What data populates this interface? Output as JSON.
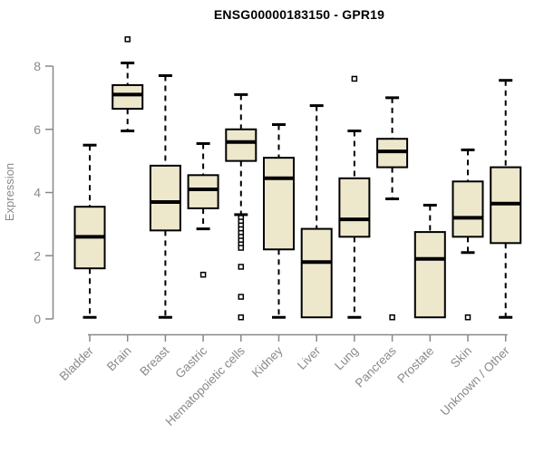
{
  "header": {
    "title": "ENSG00000183150 - GPR19"
  },
  "chart_data": {
    "type": "boxplot",
    "title": "ENSG00000183150 - GPR19",
    "xlabel": "",
    "ylabel": "Expression",
    "ylim": [
      0,
      8
    ],
    "yticks": [
      0,
      2,
      4,
      6,
      8
    ],
    "grid": false,
    "legend": "none",
    "box_fill": "#EDE7CC",
    "box_stroke": "#000000",
    "median_color": "#000000",
    "axis_color": "#888888",
    "label_color": "#8A8A8A",
    "categories": [
      "Bladder",
      "Brain",
      "Breast",
      "Gastric",
      "Hematopoietic cells",
      "Kidney",
      "Liver",
      "Lung",
      "Pancreas",
      "Prostate",
      "Skin",
      "Unknown / Other"
    ],
    "series": [
      {
        "category": "Bladder",
        "whisker_low": 0.05,
        "q1": 1.6,
        "median": 2.6,
        "q3": 3.55,
        "whisker_high": 5.5,
        "outliers": []
      },
      {
        "category": "Brain",
        "whisker_low": 5.95,
        "q1": 6.65,
        "median": 7.1,
        "q3": 7.4,
        "whisker_high": 8.1,
        "outliers": [
          8.85
        ]
      },
      {
        "category": "Breast",
        "whisker_low": 0.05,
        "q1": 2.8,
        "median": 3.7,
        "q3": 4.85,
        "whisker_high": 7.7,
        "outliers": []
      },
      {
        "category": "Gastric",
        "whisker_low": 2.85,
        "q1": 3.5,
        "median": 4.1,
        "q3": 4.55,
        "whisker_high": 5.55,
        "outliers": [
          1.4
        ]
      },
      {
        "category": "Hematopoietic cells",
        "whisker_low": 3.3,
        "q1": 5.0,
        "median": 5.6,
        "q3": 6.0,
        "whisker_high": 7.1,
        "outliers": [
          3.2,
          3.08,
          2.96,
          2.84,
          2.72,
          2.6,
          2.48,
          2.36,
          2.25,
          1.65,
          0.7,
          0.05
        ]
      },
      {
        "category": "Kidney",
        "whisker_low": 0.05,
        "q1": 2.2,
        "median": 4.45,
        "q3": 5.1,
        "whisker_high": 6.15,
        "outliers": []
      },
      {
        "category": "Liver",
        "whisker_low": 0.05,
        "q1": 0.05,
        "median": 1.8,
        "q3": 2.85,
        "whisker_high": 6.75,
        "outliers": []
      },
      {
        "category": "Lung",
        "whisker_low": 0.05,
        "q1": 2.6,
        "median": 3.15,
        "q3": 4.45,
        "whisker_high": 5.95,
        "outliers": [
          7.6
        ]
      },
      {
        "category": "Pancreas",
        "whisker_low": 3.8,
        "q1": 4.8,
        "median": 5.3,
        "q3": 5.7,
        "whisker_high": 7.0,
        "outliers": [
          0.05
        ]
      },
      {
        "category": "Prostate",
        "whisker_low": 0.05,
        "q1": 0.05,
        "median": 1.9,
        "q3": 2.75,
        "whisker_high": 3.6,
        "outliers": []
      },
      {
        "category": "Skin",
        "whisker_low": 2.1,
        "q1": 2.6,
        "median": 3.2,
        "q3": 4.35,
        "whisker_high": 5.35,
        "outliers": [
          0.05
        ]
      },
      {
        "category": "Unknown / Other",
        "whisker_low": 0.05,
        "q1": 2.4,
        "median": 3.65,
        "q3": 4.8,
        "whisker_high": 7.55,
        "outliers": []
      }
    ]
  }
}
